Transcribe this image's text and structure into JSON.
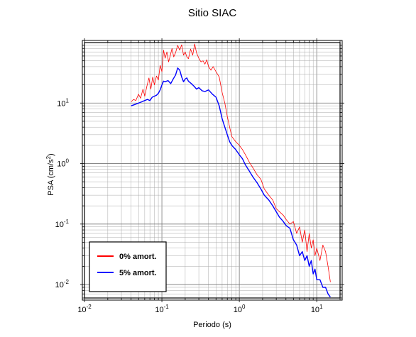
{
  "chart_data": {
    "type": "line",
    "title": "Sitio SIAC",
    "xlabel": "Periodo (s)",
    "ylabel": "PSA (cm/s",
    "ylabel_unit_exp": "2",
    "ylabel_close": ")",
    "x_scale": "log",
    "y_scale": "log",
    "xlim": [
      0.01,
      20
    ],
    "ylim": [
      0.006,
      100
    ],
    "grid": true,
    "legend_position": "bottom-left",
    "x_ticks": [
      {
        "base": "10",
        "exp": "-2",
        "value": 0.01
      },
      {
        "base": "10",
        "exp": "-1",
        "value": 0.1
      },
      {
        "base": "10",
        "exp": "0",
        "value": 1
      },
      {
        "base": "10",
        "exp": "1",
        "value": 10
      }
    ],
    "y_ticks": [
      {
        "base": "10",
        "exp": "-2",
        "value": 0.01
      },
      {
        "base": "10",
        "exp": "-1",
        "value": 0.1
      },
      {
        "base": "10",
        "exp": "0",
        "value": 1
      },
      {
        "base": "10",
        "exp": "1",
        "value": 10
      }
    ],
    "series": [
      {
        "name": "0% amort.",
        "color": "#ff0000",
        "line_width": 0.8,
        "x": [
          0.04,
          0.043,
          0.046,
          0.05,
          0.053,
          0.057,
          0.06,
          0.064,
          0.068,
          0.072,
          0.076,
          0.08,
          0.085,
          0.09,
          0.095,
          0.1,
          0.105,
          0.11,
          0.116,
          0.122,
          0.128,
          0.135,
          0.142,
          0.15,
          0.16,
          0.17,
          0.18,
          0.19,
          0.2,
          0.21,
          0.22,
          0.235,
          0.25,
          0.265,
          0.28,
          0.3,
          0.32,
          0.34,
          0.36,
          0.38,
          0.4,
          0.43,
          0.46,
          0.5,
          0.55,
          0.6,
          0.65,
          0.7,
          0.75,
          0.8,
          0.9,
          1.0,
          1.1,
          1.2,
          1.35,
          1.5,
          1.7,
          1.9,
          2.1,
          2.4,
          2.7,
          3.0,
          3.3,
          3.7,
          4.0,
          4.5,
          5.0,
          5.5,
          6.0,
          6.5,
          7.0,
          7.5,
          8.0,
          8.5,
          9.0,
          9.5,
          10.0,
          11.0,
          12.0,
          13.0,
          14.0,
          15.0
        ],
        "y": [
          10.5,
          11.5,
          11,
          14,
          12,
          17,
          13,
          19,
          26,
          17,
          27,
          20,
          28,
          24,
          42,
          33,
          75,
          55,
          70,
          48,
          60,
          80,
          58,
          68,
          90,
          75,
          92,
          62,
          70,
          58,
          54,
          78,
          62,
          95,
          68,
          55,
          48,
          50,
          44,
          52,
          40,
          35,
          40,
          33,
          27,
          15,
          10,
          6.0,
          4.0,
          2.8,
          2.3,
          2.0,
          1.7,
          1.4,
          1.05,
          0.85,
          0.65,
          0.55,
          0.38,
          0.3,
          0.25,
          0.18,
          0.16,
          0.14,
          0.12,
          0.1,
          0.11,
          0.07,
          0.09,
          0.05,
          0.08,
          0.035,
          0.07,
          0.04,
          0.055,
          0.03,
          0.04,
          0.025,
          0.045,
          0.035,
          0.02,
          0.011
        ]
      },
      {
        "name": "5% amort.",
        "color": "#0000ff",
        "line_width": 1.4,
        "x": [
          0.04,
          0.045,
          0.05,
          0.055,
          0.06,
          0.065,
          0.07,
          0.075,
          0.08,
          0.085,
          0.09,
          0.095,
          0.1,
          0.105,
          0.11,
          0.12,
          0.13,
          0.14,
          0.15,
          0.16,
          0.17,
          0.18,
          0.19,
          0.2,
          0.21,
          0.22,
          0.24,
          0.26,
          0.28,
          0.3,
          0.33,
          0.36,
          0.4,
          0.45,
          0.5,
          0.55,
          0.6,
          0.65,
          0.7,
          0.75,
          0.8,
          0.9,
          1.0,
          1.1,
          1.2,
          1.35,
          1.5,
          1.7,
          1.9,
          2.1,
          2.4,
          2.7,
          3.0,
          3.3,
          3.7,
          4.0,
          4.5,
          5.0,
          5.5,
          6.0,
          6.5,
          7.0,
          7.5,
          8.0,
          8.5,
          9.0,
          9.5,
          10.0,
          11.0,
          12.0,
          13.0,
          14.0,
          15.0
        ],
        "y": [
          9.0,
          9.5,
          10.0,
          10.5,
          11.0,
          11.5,
          11.0,
          12.5,
          13.0,
          13.5,
          14.5,
          16.5,
          20.0,
          23.0,
          22.5,
          23.5,
          21.0,
          25.0,
          29.0,
          38.0,
          35.0,
          27.0,
          22.5,
          25.0,
          26.0,
          23.0,
          21.0,
          19.0,
          17.0,
          18.0,
          16.0,
          15.5,
          16.5,
          14.0,
          12.5,
          9.0,
          5.5,
          4.0,
          3.0,
          2.3,
          2.0,
          1.7,
          1.4,
          1.2,
          0.95,
          0.75,
          0.6,
          0.48,
          0.38,
          0.3,
          0.25,
          0.2,
          0.16,
          0.13,
          0.11,
          0.095,
          0.085,
          0.055,
          0.045,
          0.03,
          0.035,
          0.025,
          0.03,
          0.02,
          0.025,
          0.015,
          0.018,
          0.012,
          0.012,
          0.009,
          0.009,
          0.007,
          0.0062
        ]
      }
    ]
  }
}
